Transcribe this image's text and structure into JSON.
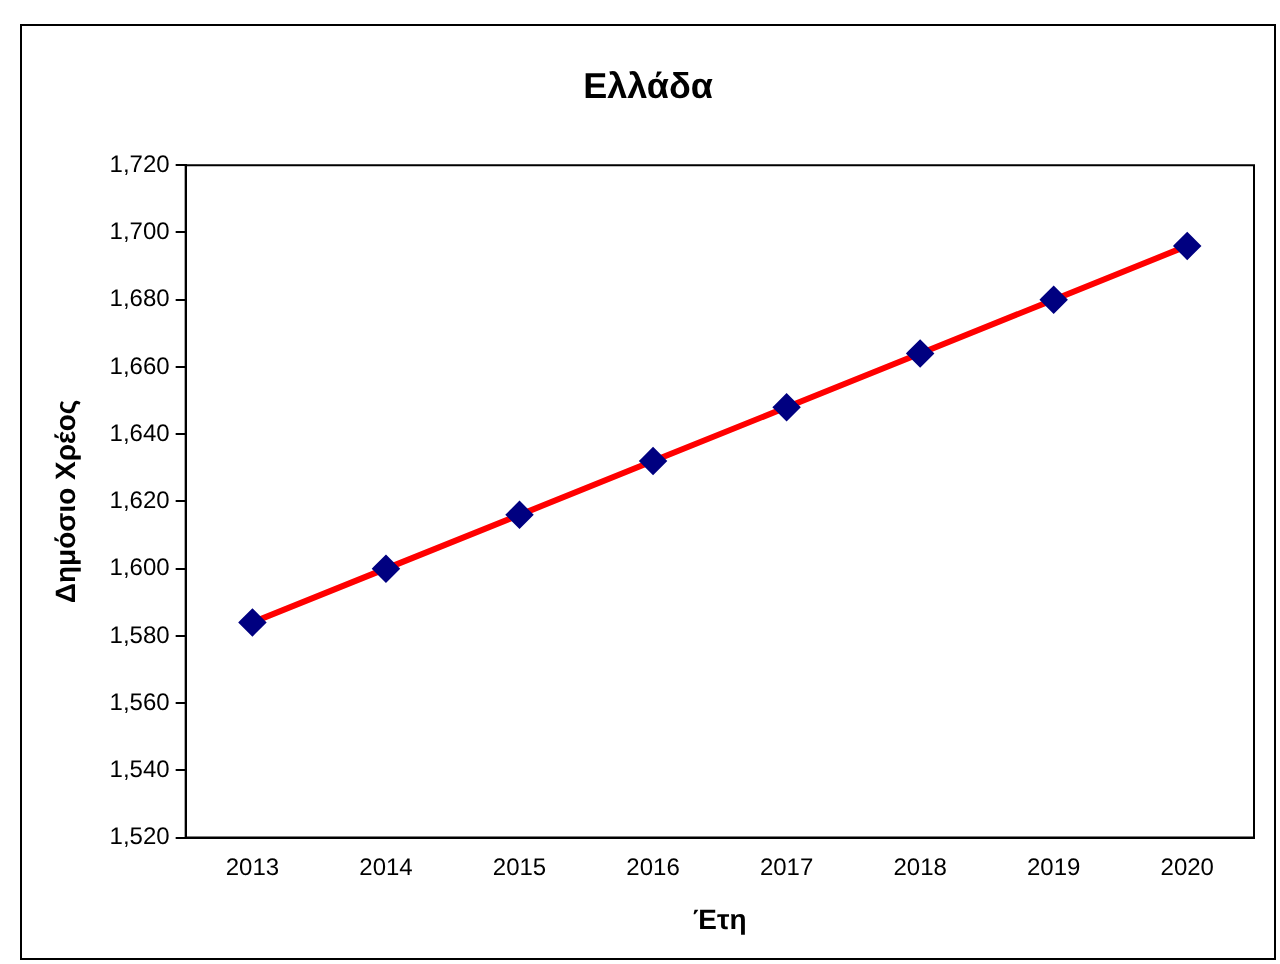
{
  "chart_data": {
    "type": "line",
    "title": "Ελλάδα",
    "xlabel": "Έτη",
    "ylabel": "Δημόσιο Χρέος",
    "categories": [
      "2013",
      "2014",
      "2015",
      "2016",
      "2017",
      "2018",
      "2019",
      "2020"
    ],
    "series": [
      {
        "color": "#ff0000",
        "values": [
          1584,
          1600,
          1616,
          1632,
          1648,
          1664,
          1680,
          1696
        ]
      }
    ],
    "ylim": [
      1520,
      1720
    ],
    "yticks": [
      {
        "value": 1520,
        "label": "1,520"
      },
      {
        "value": 1540,
        "label": "1,540"
      },
      {
        "value": 1560,
        "label": "1,560"
      },
      {
        "value": 1580,
        "label": "1,580"
      },
      {
        "value": 1600,
        "label": "1,600"
      },
      {
        "value": 1620,
        "label": "1,620"
      },
      {
        "value": 1640,
        "label": "1,640"
      },
      {
        "value": 1660,
        "label": "1,660"
      },
      {
        "value": 1680,
        "label": "1,680"
      },
      {
        "value": 1700,
        "label": "1,700"
      },
      {
        "value": 1720,
        "label": "1,720"
      }
    ],
    "grid": false,
    "legend": false,
    "marker": "diamond",
    "line_style": "solid"
  }
}
